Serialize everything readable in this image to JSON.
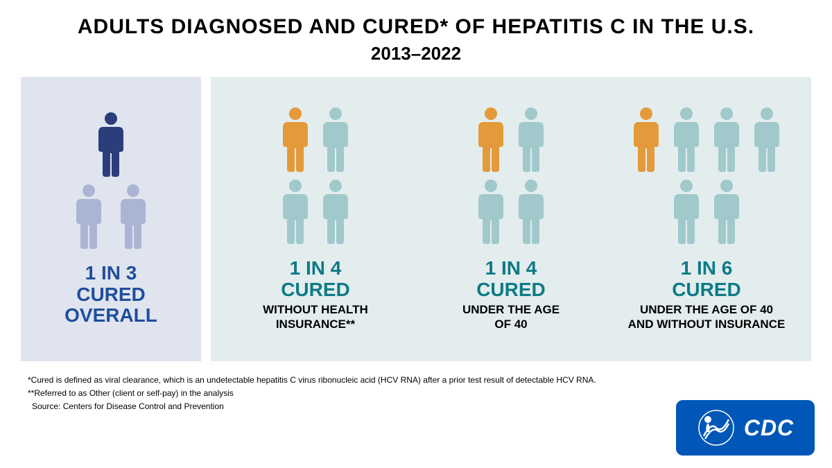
{
  "header": {
    "title": "ADULTS DIAGNOSED AND CURED* OF HEPATITIS C IN THE U.S.",
    "subtitle": "2013–2022"
  },
  "colors": {
    "panel_left_bg": "#e0e4ef",
    "panel_right_bg": "#e3edee",
    "dark_blue": "#2b3d7a",
    "light_blue": "#aab5d3",
    "orange": "#e49a3a",
    "teal_light": "#a1c9cb",
    "stat_blue": "#1f4e9c",
    "stat_teal": "#0e7a86",
    "cdc_blue": "#0057b7"
  },
  "panels": {
    "overall": {
      "stat_line1": "1 IN 3",
      "stat_line2": "CURED",
      "stat_sub": "OVERALL",
      "total_icons": 3,
      "highlight_count": 1,
      "highlight_color": "#2b3d7a",
      "rest_color": "#aab5d3"
    },
    "groups": [
      {
        "stat_line1": "1 IN 4",
        "stat_line2": "CURED",
        "stat_sub": "WITHOUT HEALTH\nINSURANCE**",
        "total_icons": 4,
        "highlight_count": 1,
        "highlight_color": "#e49a3a",
        "rest_color": "#a1c9cb"
      },
      {
        "stat_line1": "1 IN 4",
        "stat_line2": "CURED",
        "stat_sub": "UNDER THE AGE\nOF 40",
        "total_icons": 4,
        "highlight_count": 1,
        "highlight_color": "#e49a3a",
        "rest_color": "#a1c9cb"
      },
      {
        "stat_line1": "1 IN 6",
        "stat_line2": "CURED",
        "stat_sub": "UNDER THE AGE OF 40\nAND WITHOUT INSURANCE",
        "total_icons": 6,
        "highlight_count": 1,
        "highlight_color": "#e49a3a",
        "rest_color": "#a1c9cb"
      }
    ]
  },
  "footnotes": {
    "note1": "*Cured is defined as viral clearance, which is an undetectable hepatitis C virus ribonucleic acid (HCV RNA) after a prior test result of detectable HCV RNA.",
    "note2": "**Referred to as Other (client or self-pay) in the analysis",
    "note3": "Source: Centers for Disease Control and Prevention"
  },
  "badge": {
    "label": "CDC"
  }
}
